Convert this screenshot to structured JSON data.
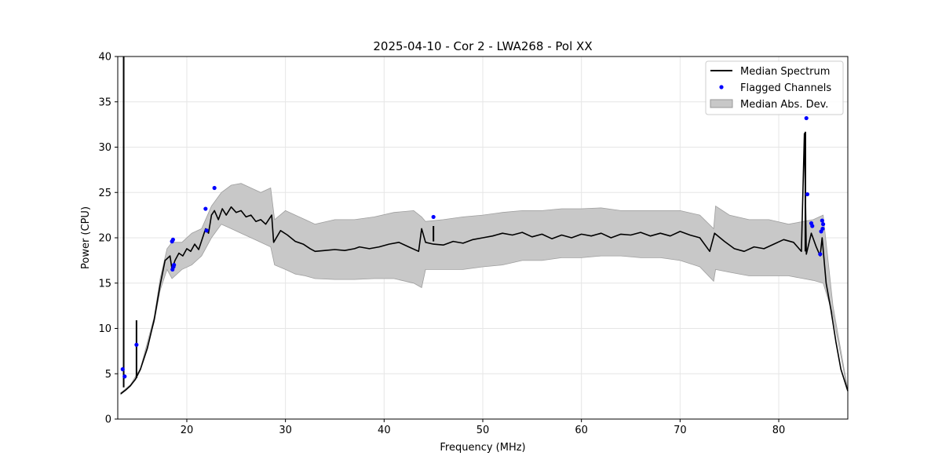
{
  "chart_data": {
    "type": "line",
    "title": "2025-04-10 - Cor 2 - LWA268 - Pol XX",
    "xlabel": "Frequency (MHz)",
    "ylabel": "Power (CPU)",
    "xlim": [
      13,
      87
    ],
    "ylim": [
      0,
      40
    ],
    "xticks": [
      20,
      30,
      40,
      50,
      60,
      70,
      80
    ],
    "yticks": [
      0,
      5,
      10,
      15,
      20,
      25,
      30,
      35,
      40
    ],
    "grid": true,
    "legend_position": "top-right",
    "legend": [
      {
        "label": "Median Spectrum",
        "kind": "line",
        "color": "#000000"
      },
      {
        "label": "Flagged Channels",
        "kind": "marker",
        "color": "#0000ff"
      },
      {
        "label": "Median Abs. Dev.",
        "kind": "patch",
        "color": "#c8c8c8"
      }
    ],
    "series": [
      {
        "name": "Median Spectrum",
        "color": "#000000",
        "x": [
          13.3,
          13.8,
          14.3,
          14.8,
          15.3,
          16.0,
          16.7,
          17.3,
          17.8,
          18.3,
          18.5,
          18.8,
          19.2,
          19.6,
          20.0,
          20.4,
          20.8,
          21.2,
          21.6,
          21.9,
          22.2,
          22.5,
          22.8,
          23.2,
          23.6,
          24.0,
          24.5,
          25.0,
          25.5,
          26.0,
          26.5,
          27.0,
          27.5,
          28.0,
          28.6,
          28.8,
          29.5,
          30.2,
          31.0,
          31.8,
          32.5,
          33.0,
          34.0,
          35.0,
          36.0,
          37.0,
          37.5,
          38.5,
          39.5,
          40.5,
          41.5,
          42.5,
          43.5,
          43.8,
          44.2,
          45.0,
          46.0,
          47.0,
          48.0,
          49.0,
          50.0,
          51.0,
          52.0,
          53.0,
          54.0,
          55.0,
          56.0,
          57.0,
          58.0,
          59.0,
          60.0,
          61.0,
          62.0,
          63.0,
          64.0,
          65.0,
          66.0,
          67.0,
          68.0,
          69.0,
          70.0,
          71.0,
          72.0,
          73.0,
          73.5,
          74.5,
          75.5,
          76.5,
          77.5,
          78.5,
          79.5,
          80.5,
          81.5,
          82.3,
          82.6,
          82.8,
          83.3,
          83.8,
          84.2,
          84.4,
          84.8,
          85.3,
          85.8,
          86.3,
          87.0
        ],
        "y": [
          2.8,
          3.2,
          3.7,
          4.4,
          5.5,
          7.8,
          11.0,
          14.8,
          17.5,
          18.0,
          16.5,
          17.5,
          18.3,
          18.0,
          18.8,
          18.5,
          19.3,
          18.7,
          20.0,
          21.0,
          20.5,
          22.5,
          23.0,
          22.0,
          23.2,
          22.5,
          23.4,
          22.8,
          23.0,
          22.3,
          22.5,
          21.8,
          22.0,
          21.5,
          22.5,
          19.5,
          20.8,
          20.3,
          19.6,
          19.3,
          18.8,
          18.5,
          18.6,
          18.7,
          18.6,
          18.8,
          19.0,
          18.8,
          19.0,
          19.3,
          19.5,
          19.0,
          18.5,
          21.0,
          19.5,
          19.3,
          19.2,
          19.6,
          19.4,
          19.8,
          20.0,
          20.2,
          20.5,
          20.3,
          20.6,
          20.1,
          20.4,
          19.9,
          20.3,
          20.0,
          20.4,
          20.2,
          20.5,
          20.0,
          20.4,
          20.3,
          20.6,
          20.2,
          20.5,
          20.2,
          20.7,
          20.3,
          20.0,
          18.5,
          20.5,
          19.6,
          18.8,
          18.5,
          19.0,
          18.8,
          19.3,
          19.8,
          19.5,
          18.5,
          31.5,
          18.2,
          20.5,
          19.0,
          18.0,
          20.0,
          15.0,
          12.0,
          8.5,
          5.5,
          3.1
        ]
      },
      {
        "name": "Median Abs. Dev.",
        "type": "area",
        "color": "#c8c8c8",
        "x": [
          13.3,
          14.3,
          15.3,
          16.7,
          17.3,
          18.0,
          18.5,
          19.5,
          20.5,
          21.5,
          22.5,
          23.5,
          24.5,
          25.5,
          26.5,
          27.5,
          28.5,
          28.9,
          30.0,
          31.0,
          32.0,
          33.0,
          35.0,
          37.0,
          39.0,
          41.0,
          43.0,
          43.8,
          44.2,
          46.0,
          48.0,
          50.0,
          52.0,
          54.0,
          56.0,
          58.0,
          60.0,
          62.0,
          64.0,
          66.0,
          68.0,
          70.0,
          72.0,
          73.4,
          73.6,
          75.0,
          77.0,
          79.0,
          81.0,
          82.5,
          83.5,
          84.5,
          85.5,
          87.0
        ],
        "y_upper": [
          2.9,
          3.8,
          5.6,
          11.3,
          15.5,
          18.8,
          19.5,
          19.5,
          20.5,
          21.0,
          23.5,
          25.0,
          25.8,
          26.0,
          25.5,
          25.0,
          25.5,
          22.0,
          23.0,
          22.5,
          22.0,
          21.5,
          22.0,
          22.0,
          22.3,
          22.8,
          23.0,
          22.3,
          21.8,
          22.0,
          22.3,
          22.5,
          22.8,
          23.0,
          23.0,
          23.2,
          23.2,
          23.3,
          23.0,
          23.0,
          23.0,
          23.0,
          22.5,
          21.0,
          23.5,
          22.5,
          22.0,
          22.0,
          21.5,
          21.8,
          22.0,
          22.5,
          12.5,
          3.2
        ],
        "y_lower": [
          2.7,
          3.6,
          5.4,
          10.7,
          14.2,
          16.5,
          15.5,
          16.5,
          17.0,
          18.0,
          20.0,
          21.5,
          21.0,
          20.5,
          20.0,
          19.5,
          19.0,
          17.0,
          16.5,
          16.0,
          15.8,
          15.5,
          15.4,
          15.4,
          15.5,
          15.5,
          15.0,
          14.5,
          16.5,
          16.5,
          16.5,
          16.8,
          17.0,
          17.5,
          17.5,
          17.8,
          17.8,
          18.0,
          18.0,
          17.8,
          17.8,
          17.5,
          16.8,
          15.2,
          16.5,
          16.2,
          15.8,
          15.8,
          15.8,
          15.5,
          15.3,
          15.0,
          11.5,
          3.0
        ]
      },
      {
        "name": "Flagged Channels",
        "type": "scatter",
        "color": "#0000ff",
        "x": [
          13.5,
          13.7,
          14.9,
          18.5,
          18.6,
          18.7,
          18.55,
          18.65,
          21.9,
          22.0,
          22.8,
          45.0,
          82.8,
          82.9,
          83.3,
          83.4,
          84.2,
          84.3,
          84.4,
          84.45,
          84.5
        ],
        "y": [
          5.5,
          4.7,
          8.2,
          19.6,
          19.8,
          17.0,
          16.5,
          16.8,
          23.2,
          20.8,
          25.5,
          22.3,
          33.2,
          24.8,
          21.6,
          21.3,
          18.2,
          20.7,
          21.9,
          21.0,
          21.5
        ]
      }
    ],
    "spikes": [
      {
        "x": 13.6,
        "y_top": 40,
        "y_base": 3.5
      },
      {
        "x": 14.9,
        "y_top": 10.9,
        "y_base": 4.5
      },
      {
        "x": 45.0,
        "y_top": 21.3,
        "y_base": 19.6
      },
      {
        "x": 82.7,
        "y_top": 31.7,
        "y_base": 18.5
      }
    ]
  }
}
